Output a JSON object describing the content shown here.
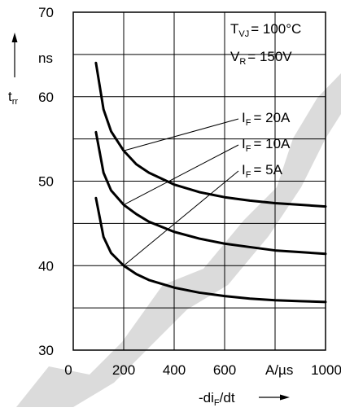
{
  "chart_data": {
    "type": "line",
    "x": [
      90,
      120,
      150,
      200,
      250,
      300,
      400,
      500,
      600,
      700,
      800,
      900,
      1000
    ],
    "series": [
      {
        "name": "I_F = 20A",
        "values": [
          64.0,
          58.5,
          55.9,
          53.6,
          52.0,
          51.0,
          49.6,
          48.7,
          48.1,
          47.7,
          47.4,
          47.2,
          47.0
        ]
      },
      {
        "name": "I_F = 10A",
        "values": [
          55.8,
          51.0,
          48.9,
          47.2,
          46.1,
          45.2,
          44.0,
          43.2,
          42.6,
          42.2,
          41.8,
          41.6,
          41.4
        ]
      },
      {
        "name": "I_F = 5A",
        "values": [
          48.0,
          43.4,
          41.5,
          40.0,
          39.0,
          38.3,
          37.4,
          36.8,
          36.4,
          36.1,
          35.9,
          35.8,
          35.7
        ]
      }
    ],
    "xlim": [
      0,
      1000
    ],
    "ylim": [
      30,
      70
    ],
    "xticks": [
      "0",
      "200",
      "400",
      "600",
      "1000"
    ],
    "yticks": [
      "30",
      "40",
      "50",
      "60",
      "70"
    ],
    "x_unit": "A/µs",
    "y_unit": "ns",
    "xlabel": {
      "pre": "-di",
      "sub": "F",
      "post": "/dt"
    },
    "ylabel": {
      "main": "t",
      "sub": "rr"
    },
    "grid": true,
    "conditions": [
      {
        "main": "T",
        "sub": "VJ",
        "value": "= 100°C"
      },
      {
        "main": "V",
        "sub": "R",
        "value": "=  150V"
      }
    ],
    "series_labels": [
      {
        "main": "I",
        "sub": "F",
        "value": "= 20A"
      },
      {
        "main": "I",
        "sub": "F",
        "value": "= 10A"
      },
      {
        "main": "I",
        "sub": "F",
        "value": "=   5A"
      }
    ],
    "colors": {
      "curve": "#000000",
      "grid": "#000000",
      "watermark": "#b0b0b0"
    }
  }
}
